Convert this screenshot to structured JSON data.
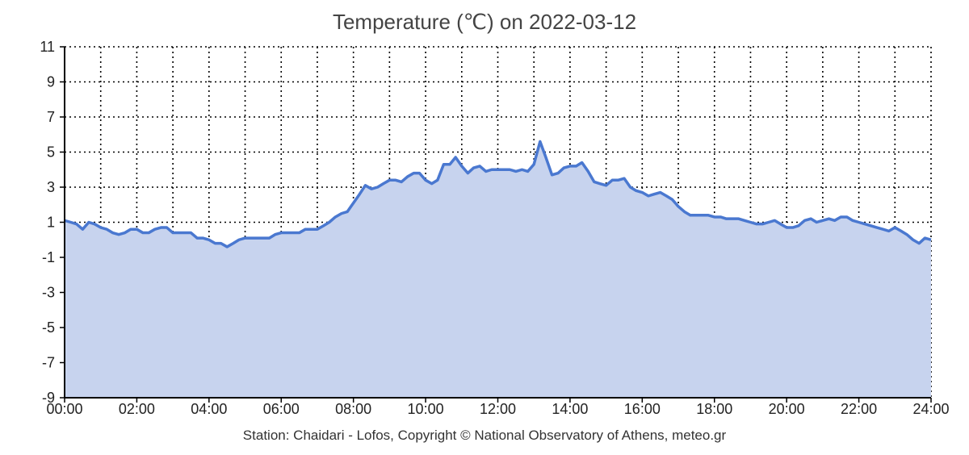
{
  "chart_data": {
    "type": "area",
    "title": "Temperature (℃) on 2022-03-12",
    "footer": "Station: Chaidari - Lofos, Copyright © National Observatory of Athens, meteo.gr",
    "x_unit": "hour",
    "xlim": [
      0,
      24
    ],
    "ylim": [
      -9,
      11
    ],
    "x_ticks": [
      0,
      2,
      4,
      6,
      8,
      10,
      12,
      14,
      16,
      18,
      20,
      22,
      24
    ],
    "x_tick_labels": [
      "00:00",
      "02:00",
      "04:00",
      "06:00",
      "08:00",
      "10:00",
      "12:00",
      "14:00",
      "16:00",
      "18:00",
      "20:00",
      "22:00",
      "24:00"
    ],
    "y_ticks": [
      11,
      9,
      7,
      5,
      3,
      1,
      -1,
      -3,
      -5,
      -7,
      -9
    ],
    "y_tick_labels": [
      "11",
      "9",
      "7",
      "5",
      "3",
      "1",
      "-1",
      "-3",
      "-5",
      "-7",
      "-9"
    ],
    "grid": true,
    "grid_style": "dotted",
    "colors": {
      "line": "#4a78d0",
      "fill": "#c7d3ee",
      "grid": "#000000"
    },
    "series": [
      {
        "x": [
          0.0,
          0.17,
          0.33,
          0.5,
          0.67,
          0.83,
          1.0,
          1.17,
          1.33,
          1.5,
          1.67,
          1.83,
          2.0,
          2.17,
          2.33,
          2.5,
          2.67,
          2.83,
          3.0,
          3.17,
          3.33,
          3.5,
          3.67,
          3.83,
          4.0,
          4.17,
          4.33,
          4.5,
          4.67,
          4.83,
          5.0,
          5.17,
          5.33,
          5.5,
          5.67,
          5.83,
          6.0,
          6.17,
          6.33,
          6.5,
          6.67,
          6.83,
          7.0,
          7.17,
          7.33,
          7.5,
          7.67,
          7.83,
          8.0,
          8.17,
          8.33,
          8.5,
          8.67,
          8.83,
          9.0,
          9.17,
          9.33,
          9.5,
          9.67,
          9.83,
          10.0,
          10.17,
          10.33,
          10.5,
          10.67,
          10.83,
          11.0,
          11.17,
          11.33,
          11.5,
          11.67,
          11.83,
          12.0,
          12.17,
          12.33,
          12.5,
          12.67,
          12.83,
          13.0,
          13.17,
          13.33,
          13.5,
          13.67,
          13.83,
          14.0,
          14.17,
          14.33,
          14.5,
          14.67,
          14.83,
          15.0,
          15.17,
          15.33,
          15.5,
          15.67,
          15.83,
          16.0,
          16.17,
          16.33,
          16.5,
          16.67,
          16.83,
          17.0,
          17.17,
          17.33,
          17.5,
          17.67,
          17.83,
          18.0,
          18.17,
          18.33,
          18.5,
          18.67,
          18.83,
          19.0,
          19.17,
          19.33,
          19.5,
          19.67,
          19.83,
          20.0,
          20.17,
          20.33,
          20.5,
          20.67,
          20.83,
          21.0,
          21.17,
          21.33,
          21.5,
          21.67,
          21.83,
          22.0,
          22.17,
          22.33,
          22.5,
          22.67,
          22.83,
          23.0,
          23.17,
          23.33,
          23.5,
          23.67,
          23.83,
          24.0
        ],
        "y": [
          1.1,
          1.0,
          0.9,
          0.6,
          1.0,
          0.9,
          0.7,
          0.6,
          0.4,
          0.3,
          0.4,
          0.6,
          0.6,
          0.4,
          0.4,
          0.6,
          0.7,
          0.7,
          0.4,
          0.4,
          0.4,
          0.4,
          0.1,
          0.1,
          0.0,
          -0.2,
          -0.2,
          -0.4,
          -0.2,
          0.0,
          0.1,
          0.1,
          0.1,
          0.1,
          0.1,
          0.3,
          0.4,
          0.4,
          0.4,
          0.4,
          0.6,
          0.6,
          0.6,
          0.8,
          1.0,
          1.3,
          1.5,
          1.6,
          2.1,
          2.6,
          3.1,
          2.9,
          3.0,
          3.2,
          3.4,
          3.4,
          3.3,
          3.6,
          3.8,
          3.8,
          3.4,
          3.2,
          3.4,
          4.3,
          4.3,
          4.7,
          4.2,
          3.8,
          4.1,
          4.2,
          3.9,
          4.0,
          4.0,
          4.0,
          4.0,
          3.9,
          4.0,
          3.9,
          4.3,
          5.6,
          4.7,
          3.7,
          3.8,
          4.1,
          4.2,
          4.2,
          4.4,
          3.9,
          3.3,
          3.2,
          3.1,
          3.4,
          3.4,
          3.5,
          3.0,
          2.8,
          2.7,
          2.5,
          2.6,
          2.7,
          2.5,
          2.3,
          1.9,
          1.6,
          1.4,
          1.4,
          1.4,
          1.4,
          1.3,
          1.3,
          1.2,
          1.2,
          1.2,
          1.1,
          1.0,
          0.9,
          0.9,
          1.0,
          1.1,
          0.9,
          0.7,
          0.7,
          0.8,
          1.1,
          1.2,
          1.0,
          1.1,
          1.2,
          1.1,
          1.3,
          1.3,
          1.1,
          1.0,
          0.9,
          0.8,
          0.7,
          0.6,
          0.5,
          0.7,
          0.5,
          0.3,
          0.0,
          -0.2,
          0.1,
          0.0
        ]
      }
    ]
  }
}
